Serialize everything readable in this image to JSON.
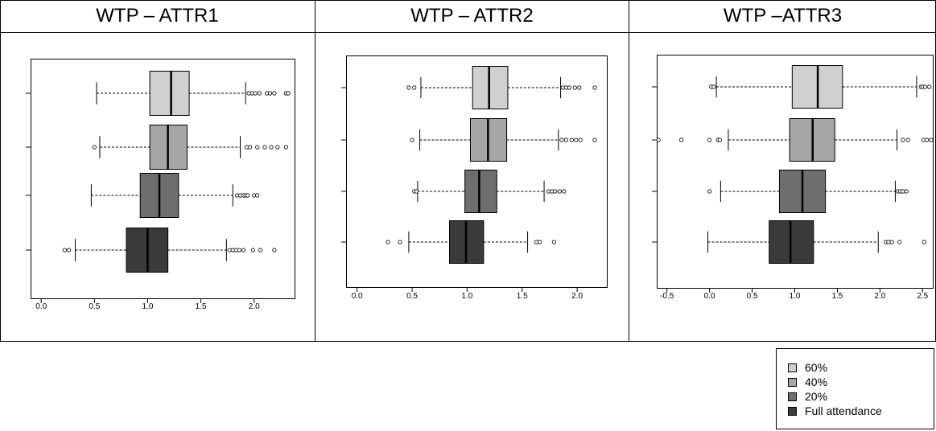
{
  "colors": {
    "60%": "#d0d0d0",
    "40%": "#a6a6a6",
    "20%": "#6e6e6e",
    "full": "#3a3a3a"
  },
  "legend": {
    "items": [
      {
        "label": "60%",
        "color_key": "60%"
      },
      {
        "label": "40%",
        "color_key": "40%"
      },
      {
        "label": "20%",
        "color_key": "20%"
      },
      {
        "label": "Full attendance",
        "color_key": "full"
      }
    ]
  },
  "chart_data": [
    {
      "type": "boxplot",
      "title": "WTP – ATTR1",
      "xlim": [
        -0.1,
        2.38
      ],
      "xticks": [
        0.0,
        0.5,
        1.0,
        1.5,
        2.0
      ],
      "xtick_labels": [
        "0.0",
        "0.5",
        "1.0",
        "1.5",
        "2.0"
      ],
      "series": [
        {
          "group": "60%",
          "whisker_low": 0.52,
          "q1": 1.02,
          "median": 1.22,
          "q3": 1.39,
          "whisker_high": 1.92,
          "outliers": [
            1.95,
            1.98,
            2.01,
            2.05,
            2.12,
            2.15,
            2.19,
            2.3,
            2.32
          ]
        },
        {
          "group": "40%",
          "whisker_low": 0.55,
          "q1": 1.02,
          "median": 1.19,
          "q3": 1.37,
          "whisker_high": 1.87,
          "outliers": [
            0.5,
            1.93,
            1.96,
            2.03,
            2.1,
            2.16,
            2.22,
            2.3
          ]
        },
        {
          "group": "20%",
          "whisker_low": 0.47,
          "q1": 0.93,
          "median": 1.11,
          "q3": 1.29,
          "whisker_high": 1.8,
          "outliers": [
            1.84,
            1.87,
            1.9,
            1.92,
            1.94,
            2.0,
            2.03
          ]
        },
        {
          "group": "Full attendance",
          "whisker_low": 0.32,
          "q1": 0.8,
          "median": 1.0,
          "q3": 1.19,
          "whisker_high": 1.74,
          "outliers": [
            0.22,
            0.26,
            1.77,
            1.8,
            1.83,
            1.86,
            1.9,
            1.99,
            2.06,
            2.19
          ]
        }
      ]
    },
    {
      "type": "boxplot",
      "title": "WTP – ATTR2",
      "xlim": [
        -0.1,
        2.27
      ],
      "xticks": [
        0.0,
        0.5,
        1.0,
        1.5,
        2.0
      ],
      "xtick_labels": [
        "0.0",
        "0.5",
        "1.0",
        "1.5",
        "2.0"
      ],
      "series": [
        {
          "group": "60%",
          "whisker_low": 0.58,
          "q1": 1.05,
          "median": 1.2,
          "q3": 1.37,
          "whisker_high": 1.85,
          "outliers": [
            0.47,
            0.52,
            1.87,
            1.9,
            1.93,
            1.98,
            2.02,
            2.16
          ]
        },
        {
          "group": "40%",
          "whisker_low": 0.57,
          "q1": 1.03,
          "median": 1.19,
          "q3": 1.36,
          "whisker_high": 1.83,
          "outliers": [
            0.5,
            1.86,
            1.9,
            1.95,
            1.99,
            2.03,
            2.16
          ]
        },
        {
          "group": "20%",
          "whisker_low": 0.55,
          "q1": 0.98,
          "median": 1.11,
          "q3": 1.27,
          "whisker_high": 1.7,
          "outliers": [
            0.52,
            0.54,
            1.74,
            1.77,
            1.8,
            1.84,
            1.88
          ]
        },
        {
          "group": "Full attendance",
          "whisker_low": 0.47,
          "q1": 0.84,
          "median": 0.99,
          "q3": 1.15,
          "whisker_high": 1.55,
          "outliers": [
            0.28,
            0.39,
            1.63,
            1.66,
            1.79
          ]
        }
      ]
    },
    {
      "type": "boxplot",
      "title": "WTP –ATTR3",
      "xlim": [
        -0.62,
        2.62
      ],
      "xticks": [
        -0.5,
        0.0,
        0.5,
        1.0,
        1.5,
        2.0,
        2.5
      ],
      "xtick_labels": [
        "-0.5",
        "0.0",
        "0.5",
        "1.0",
        "1.5",
        "2.0",
        "2.5"
      ],
      "series": [
        {
          "group": "60%",
          "whisker_low": 0.08,
          "q1": 0.97,
          "median": 1.27,
          "q3": 1.56,
          "whisker_high": 2.43,
          "outliers": [
            0.02,
            0.05,
            2.48,
            2.5,
            2.53,
            2.58
          ]
        },
        {
          "group": "40%",
          "whisker_low": 0.22,
          "q1": 0.94,
          "median": 1.21,
          "q3": 1.47,
          "whisker_high": 2.2,
          "outliers": [
            -0.6,
            -0.33,
            0.0,
            0.1,
            0.12,
            2.27,
            2.33,
            2.51,
            2.55,
            2.6
          ]
        },
        {
          "group": "20%",
          "whisker_low": 0.13,
          "q1": 0.82,
          "median": 1.09,
          "q3": 1.36,
          "whisker_high": 2.18,
          "outliers": [
            0.0,
            2.21,
            2.24,
            2.27,
            2.31
          ]
        },
        {
          "group": "Full attendance",
          "whisker_low": -0.02,
          "q1": 0.7,
          "median": 0.95,
          "q3": 1.22,
          "whisker_high": 1.98,
          "outliers": [
            2.07,
            2.1,
            2.14,
            2.23,
            2.52
          ]
        }
      ]
    }
  ]
}
